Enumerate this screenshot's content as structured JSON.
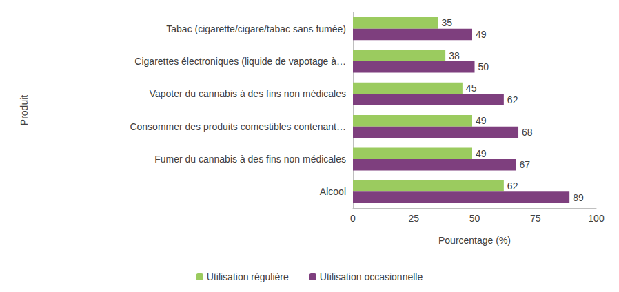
{
  "chart_data": {
    "type": "bar",
    "orientation": "horizontal",
    "xlabel": "Pourcentage (%)",
    "ylabel": "Produit",
    "categories": [
      "Tabac (cigarette/cigare/tabac sans fumée)",
      "Cigarettes électroniques (liquide de vapotage à…",
      "Vapoter du cannabis à des fins non médicales",
      "Consommer des produits comestibles contenant…",
      "Fumer du cannabis à des fins non médicales",
      "Alcool"
    ],
    "series": [
      {
        "name": "Utilisation régulière",
        "color": "#9bcb5f",
        "values": [
          35,
          38,
          45,
          49,
          49,
          62
        ]
      },
      {
        "name": "Utilisation occasionnelle",
        "color": "#7e3f7e",
        "values": [
          49,
          50,
          62,
          68,
          67,
          89
        ]
      }
    ],
    "xlim": [
      0,
      100
    ],
    "xticks": [
      0,
      25,
      50,
      75,
      100
    ],
    "grid": false,
    "legend": "bottom",
    "data_labels": true
  }
}
